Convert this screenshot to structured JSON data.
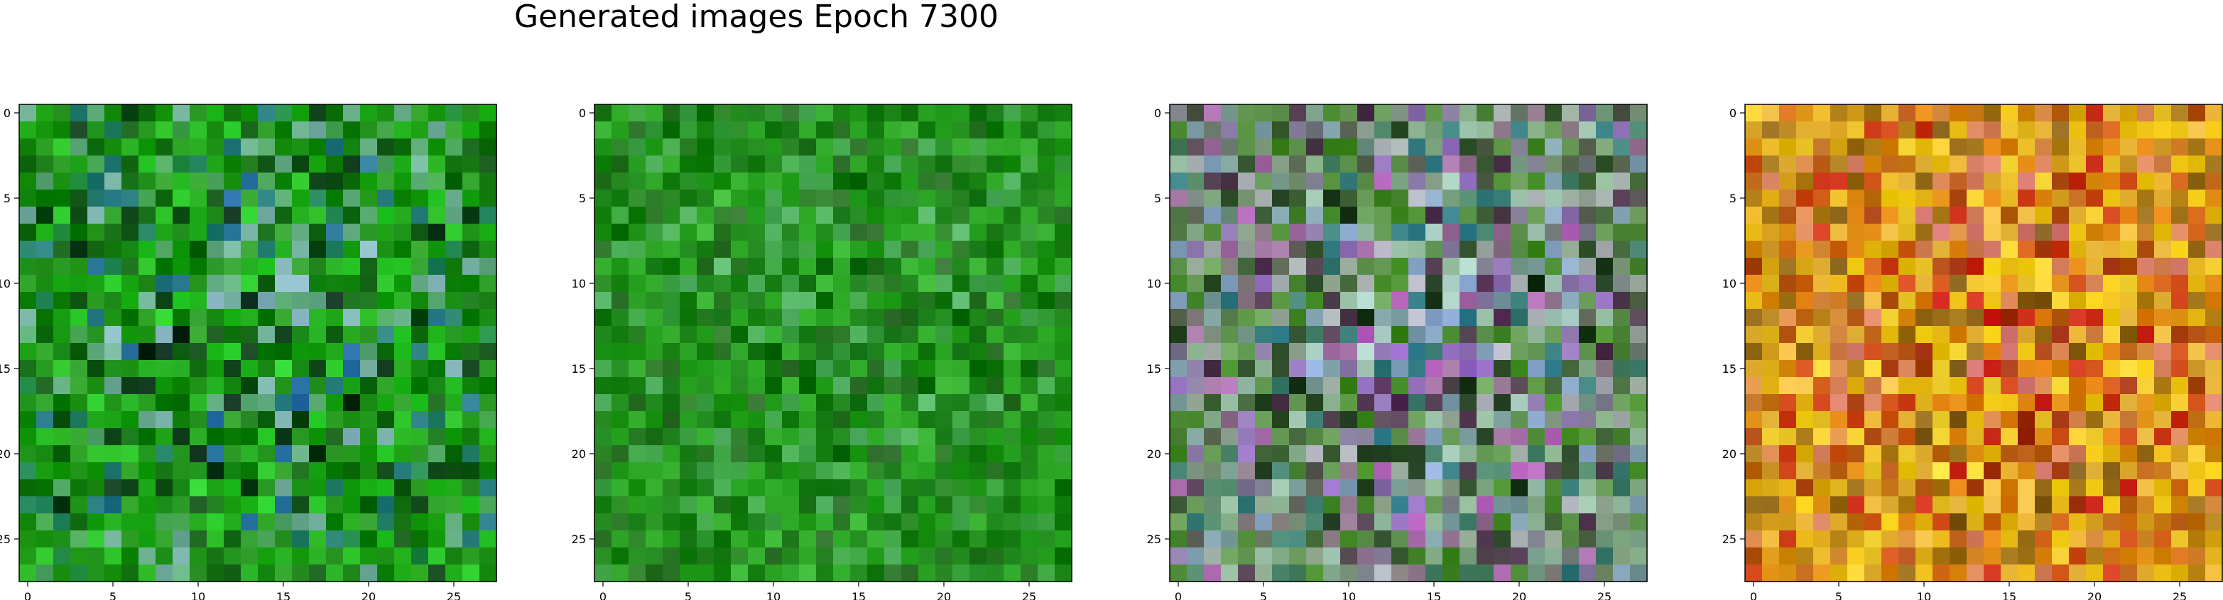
{
  "chart_data": {
    "type": "heatmap",
    "title": "Generated images Epoch 7300",
    "image_size": 28,
    "panels": [
      {
        "name": "",
        "base_color": "#1f9a12",
        "noise_palette": [
          "#0b7b0b",
          "#19a617",
          "#0e5f12",
          "#2f9c2c",
          "#0a2c1a",
          "#2a70a8",
          "#88b6c0",
          "#2ad12c"
        ]
      },
      {
        "name": "",
        "base_color": "#1d8f16",
        "noise_palette": [
          "#167a14",
          "#26a41e",
          "#0f6b10",
          "#3ab734",
          "#2f6d2c",
          "#58b56a"
        ]
      },
      {
        "name": "",
        "base_color": "#5e8a4f",
        "noise_palette": [
          "#6ca45b",
          "#b7b6c6",
          "#9a6ccb",
          "#c064c8",
          "#4e2850",
          "#2e7a8a",
          "#b3d6cf",
          "#8ea9d4",
          "#173117",
          "#3e8c1e"
        ]
      },
      {
        "name": "",
        "base_color": "#d79a14",
        "noise_palette": [
          "#f2cf10",
          "#e07b0d",
          "#cc1f1a",
          "#9f2e11",
          "#f0c24b",
          "#d97a76",
          "#7f5a19",
          "#f7da37"
        ]
      }
    ],
    "axes": {
      "xlim": [
        -0.5,
        27.5
      ],
      "ylim": [
        27.5,
        -0.5
      ],
      "xticks": [
        0,
        5,
        10,
        15,
        20,
        25
      ],
      "yticks": [
        0,
        5,
        10,
        15,
        20,
        25
      ],
      "xtick_labels": [
        "0",
        "5",
        "10",
        "15",
        "20",
        "25"
      ],
      "ytick_labels": [
        "0",
        "5",
        "10",
        "15",
        "20",
        "25"
      ]
    }
  }
}
